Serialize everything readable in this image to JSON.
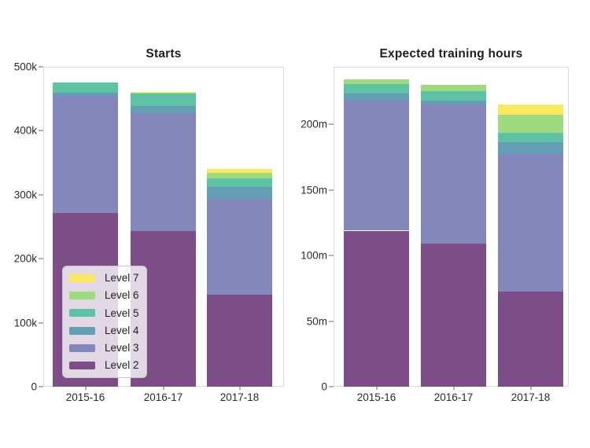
{
  "figure": {
    "background": "#ffffff",
    "text_color": "#2b2b2b"
  },
  "legend": {
    "items": [
      {
        "label": "Level 7",
        "color": "#F8E95E"
      },
      {
        "label": "Level 6",
        "color": "#9EDB80"
      },
      {
        "label": "Level 5",
        "color": "#5FC2A4"
      },
      {
        "label": "Level 4",
        "color": "#639EB4"
      },
      {
        "label": "Level 3",
        "color": "#8487BB"
      },
      {
        "label": "Level 2",
        "color": "#7C4D87"
      }
    ]
  },
  "chart_data": [
    {
      "type": "bar",
      "stacked": true,
      "title": "Starts",
      "categories": [
        "2015-16",
        "2016-17",
        "2017-18"
      ],
      "series": [
        {
          "name": "Level 2",
          "values": [
            272,
            243,
            144
          ]
        },
        {
          "name": "Level 3",
          "values": [
            182,
            184,
            150
          ]
        },
        {
          "name": "Level 4",
          "values": [
            5,
            11,
            18
          ]
        },
        {
          "name": "Level 5",
          "values": [
            17,
            20,
            14
          ]
        },
        {
          "name": "Level 6",
          "values": [
            0,
            1,
            8
          ]
        },
        {
          "name": "Level 7",
          "values": [
            0,
            2,
            6
          ]
        }
      ],
      "ylim": [
        0,
        500
      ],
      "y_ticks": [
        {
          "value": 0,
          "label": "0"
        },
        {
          "value": 100,
          "label": "100k"
        },
        {
          "value": 200,
          "label": "200k"
        },
        {
          "value": 300,
          "label": "300k"
        },
        {
          "value": 400,
          "label": "400k"
        },
        {
          "value": 500,
          "label": "500k"
        }
      ],
      "grid": false,
      "legend_position": "lower left"
    },
    {
      "type": "bar",
      "stacked": true,
      "title": "Expected training hours",
      "categories": [
        "2015-16",
        "2016-17",
        "2017-18"
      ],
      "series": [
        {
          "name": "Level 2",
          "values": [
            119,
            109,
            72.5
          ]
        },
        {
          "name": "Level 3",
          "values": [
            99,
            106,
            105
          ]
        },
        {
          "name": "Level 4",
          "values": [
            5.5,
            3.5,
            9
          ]
        },
        {
          "name": "Level 5",
          "values": [
            7.5,
            7,
            7
          ]
        },
        {
          "name": "Level 6",
          "values": [
            3.5,
            4.5,
            14
          ]
        },
        {
          "name": "Level 7",
          "values": [
            0,
            0,
            8
          ]
        }
      ],
      "ylim": [
        0,
        244
      ],
      "y_ticks": [
        {
          "value": 0,
          "label": "0"
        },
        {
          "value": 50,
          "label": "50m"
        },
        {
          "value": 100,
          "label": "100m"
        },
        {
          "value": 150,
          "label": "150m"
        },
        {
          "value": 200,
          "label": "200m"
        }
      ],
      "grid": false,
      "legend_position": "none"
    }
  ]
}
